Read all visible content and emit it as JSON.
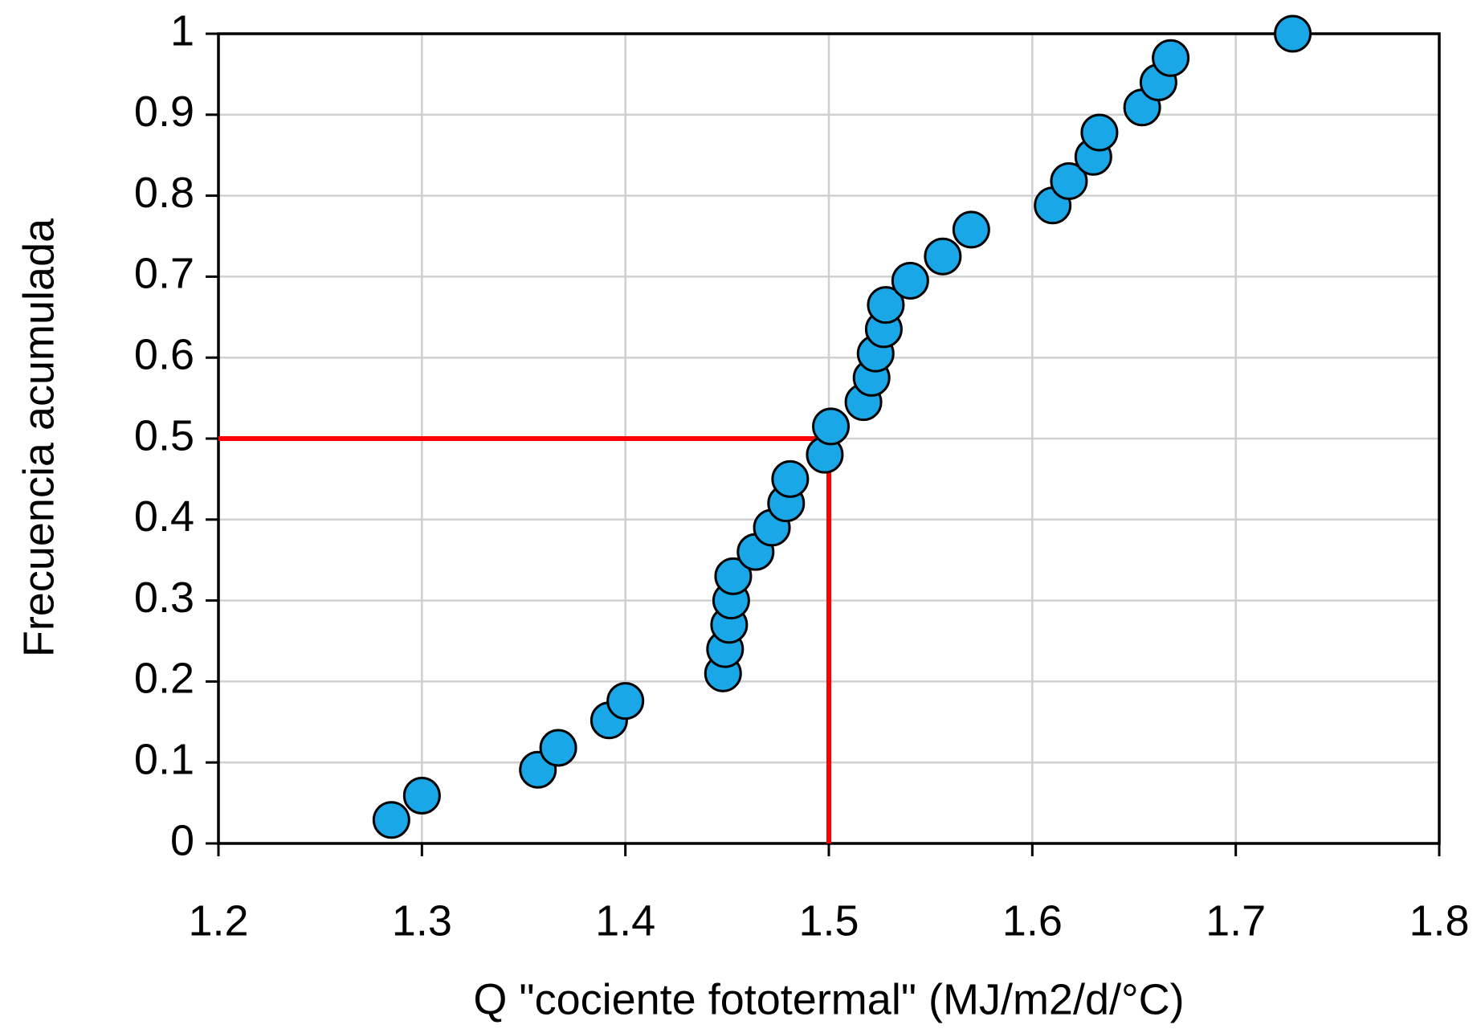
{
  "chart_data": {
    "type": "scatter",
    "x_label": "Q \"cociente fototermal\" (MJ/m2/d/°C)",
    "y_label": "Frecuencia acumulada",
    "xlim": [
      1.2,
      1.8
    ],
    "ylim": [
      0,
      1
    ],
    "xticks": [
      1.2,
      1.3,
      1.4,
      1.5,
      1.6,
      1.7,
      1.8
    ],
    "yticks": [
      0,
      0.1,
      0.2,
      0.3,
      0.4,
      0.5,
      0.6,
      0.7,
      0.8,
      0.9,
      1
    ],
    "grid": true,
    "series": [
      {
        "color": "#1aa7e8",
        "x": [
          1.285,
          1.3,
          1.357,
          1.367,
          1.392,
          1.4,
          1.448,
          1.449,
          1.451,
          1.452,
          1.453,
          1.464,
          1.472,
          1.479,
          1.481,
          1.498,
          1.501,
          1.517,
          1.521,
          1.523,
          1.527,
          1.528,
          1.54,
          1.556,
          1.57,
          1.61,
          1.618,
          1.63,
          1.633,
          1.654,
          1.662,
          1.668,
          1.728
        ],
        "values": [
          0.029,
          0.059,
          0.091,
          0.118,
          0.152,
          0.176,
          0.21,
          0.24,
          0.27,
          0.3,
          0.33,
          0.36,
          0.39,
          0.42,
          0.45,
          0.48,
          0.515,
          0.545,
          0.575,
          0.605,
          0.635,
          0.665,
          0.695,
          0.725,
          0.758,
          0.788,
          0.818,
          0.848,
          0.878,
          0.909,
          0.94,
          0.97,
          1.0
        ]
      }
    ],
    "guide": {
      "x": 1.5,
      "y": 0.5,
      "color": "#ff0000"
    }
  }
}
